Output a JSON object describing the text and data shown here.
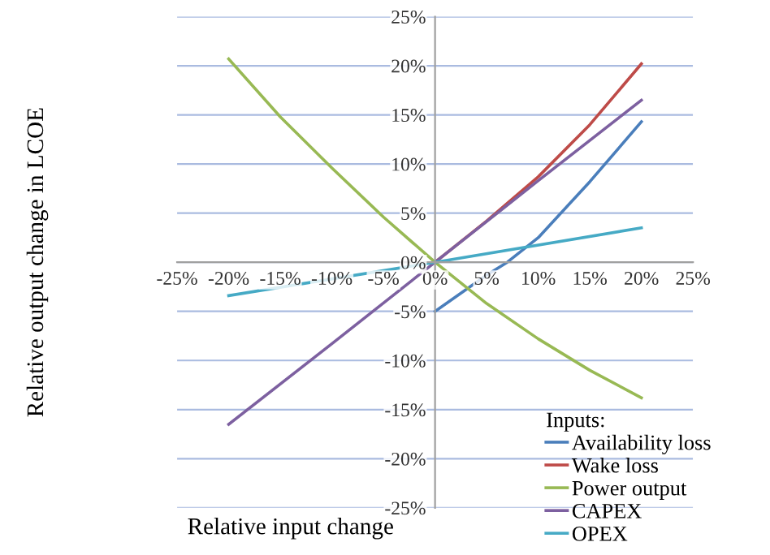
{
  "chart_data": {
    "type": "line",
    "xlabel": "Relative input change",
    "ylabel": "Relative output change in LCOE",
    "legend_title": "Inputs:",
    "series": [
      {
        "name": "Availability loss",
        "color": "#4a7ebb",
        "x": [
          0,
          5,
          7,
          10,
          15,
          20
        ],
        "values": [
          -5,
          -1.3,
          0,
          2.5,
          8.2,
          14.3
        ]
      },
      {
        "name": "Wake loss",
        "color": "#be4b48",
        "x": [
          0,
          5,
          10,
          15,
          20
        ],
        "values": [
          0,
          4.2,
          8.7,
          14,
          20.2
        ]
      },
      {
        "name": "Power output",
        "color": "#98b954",
        "x": [
          -20,
          -15,
          -10,
          -5,
          0,
          5,
          10,
          15,
          20
        ],
        "values": [
          20.7,
          14.8,
          9.6,
          4.6,
          0,
          -4.2,
          -7.8,
          -11,
          -13.8
        ]
      },
      {
        "name": "CAPEX",
        "color": "#7d60a0",
        "x": [
          -20,
          -10,
          0,
          10,
          20
        ],
        "values": [
          -16.5,
          -8.3,
          0,
          8.3,
          16.5
        ]
      },
      {
        "name": "OPEX",
        "color": "#46aac5",
        "x": [
          -20,
          0,
          20
        ],
        "values": [
          -3.4,
          0,
          3.5
        ]
      }
    ],
    "xlim": [
      -25,
      25
    ],
    "ylim": [
      -25,
      25
    ],
    "xticks": [
      {
        "value": -25,
        "label": "-25%"
      },
      {
        "value": -20,
        "label": "-20%"
      },
      {
        "value": -15,
        "label": "-15%"
      },
      {
        "value": -10,
        "label": "-10%"
      },
      {
        "value": -5,
        "label": "-5%"
      },
      {
        "value": 0,
        "label": "0%"
      },
      {
        "value": 5,
        "label": "5%"
      },
      {
        "value": 10,
        "label": "10%"
      },
      {
        "value": 15,
        "label": "15%"
      },
      {
        "value": 20,
        "label": "20%"
      },
      {
        "value": 25,
        "label": "25%"
      }
    ],
    "yticks": [
      {
        "value": -25,
        "label": "-25%"
      },
      {
        "value": -20,
        "label": "-20%"
      },
      {
        "value": -15,
        "label": "-15%"
      },
      {
        "value": -10,
        "label": "-10%"
      },
      {
        "value": -5,
        "label": "-5%"
      },
      {
        "value": 0,
        "label": "0%"
      },
      {
        "value": 5,
        "label": "5%"
      },
      {
        "value": 10,
        "label": "10%"
      },
      {
        "value": 15,
        "label": "15%"
      },
      {
        "value": 20,
        "label": "20%"
      },
      {
        "value": 25,
        "label": "25%"
      }
    ],
    "grid": "y",
    "legend": "bottom right",
    "marker": "none",
    "line_style": "solid"
  }
}
